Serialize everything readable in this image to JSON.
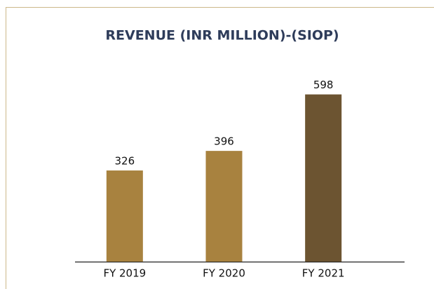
{
  "chart_data": {
    "type": "bar",
    "title": "REVENUE (INR MILLION)-(SIOP)",
    "categories": [
      "FY 2019",
      "FY 2020",
      "FY 2021"
    ],
    "values": [
      326,
      396,
      598
    ],
    "colors": [
      "#a8823f",
      "#a8823f",
      "#6c5431"
    ],
    "ylim": [
      0,
      750
    ]
  }
}
